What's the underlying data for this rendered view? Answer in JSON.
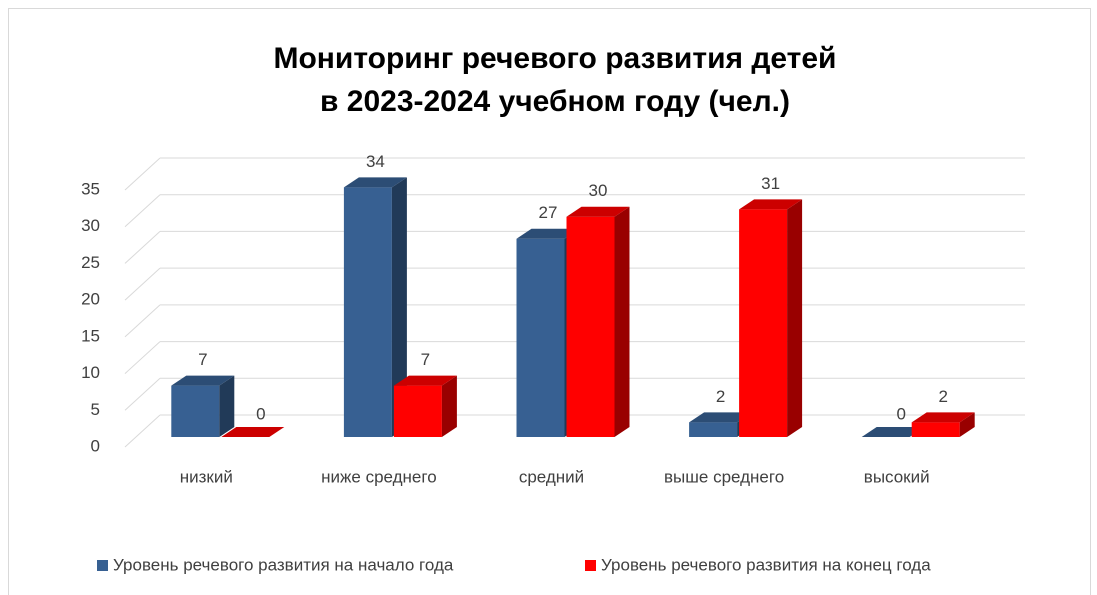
{
  "chart_data": {
    "type": "bar3d",
    "title": [
      "Мониторинг речевого развития детей",
      "в 2023-2024 учебном году (чел.)"
    ],
    "categories": [
      "низкий",
      "ниже среднего",
      "средний",
      "выше среднего",
      "высокий"
    ],
    "series": [
      {
        "name": "Уровень речевого развития на начало года",
        "color": "#376092",
        "values": [
          7,
          34,
          27,
          2,
          0
        ]
      },
      {
        "name": "Уровень речевого развития на конец года",
        "color": "#ff0000",
        "values": [
          0,
          7,
          30,
          31,
          2
        ]
      }
    ],
    "ylim": [
      0,
      35
    ],
    "yticks": [
      0,
      5,
      10,
      15,
      20,
      25,
      30,
      35
    ],
    "grid": true,
    "legend": "bottom"
  }
}
